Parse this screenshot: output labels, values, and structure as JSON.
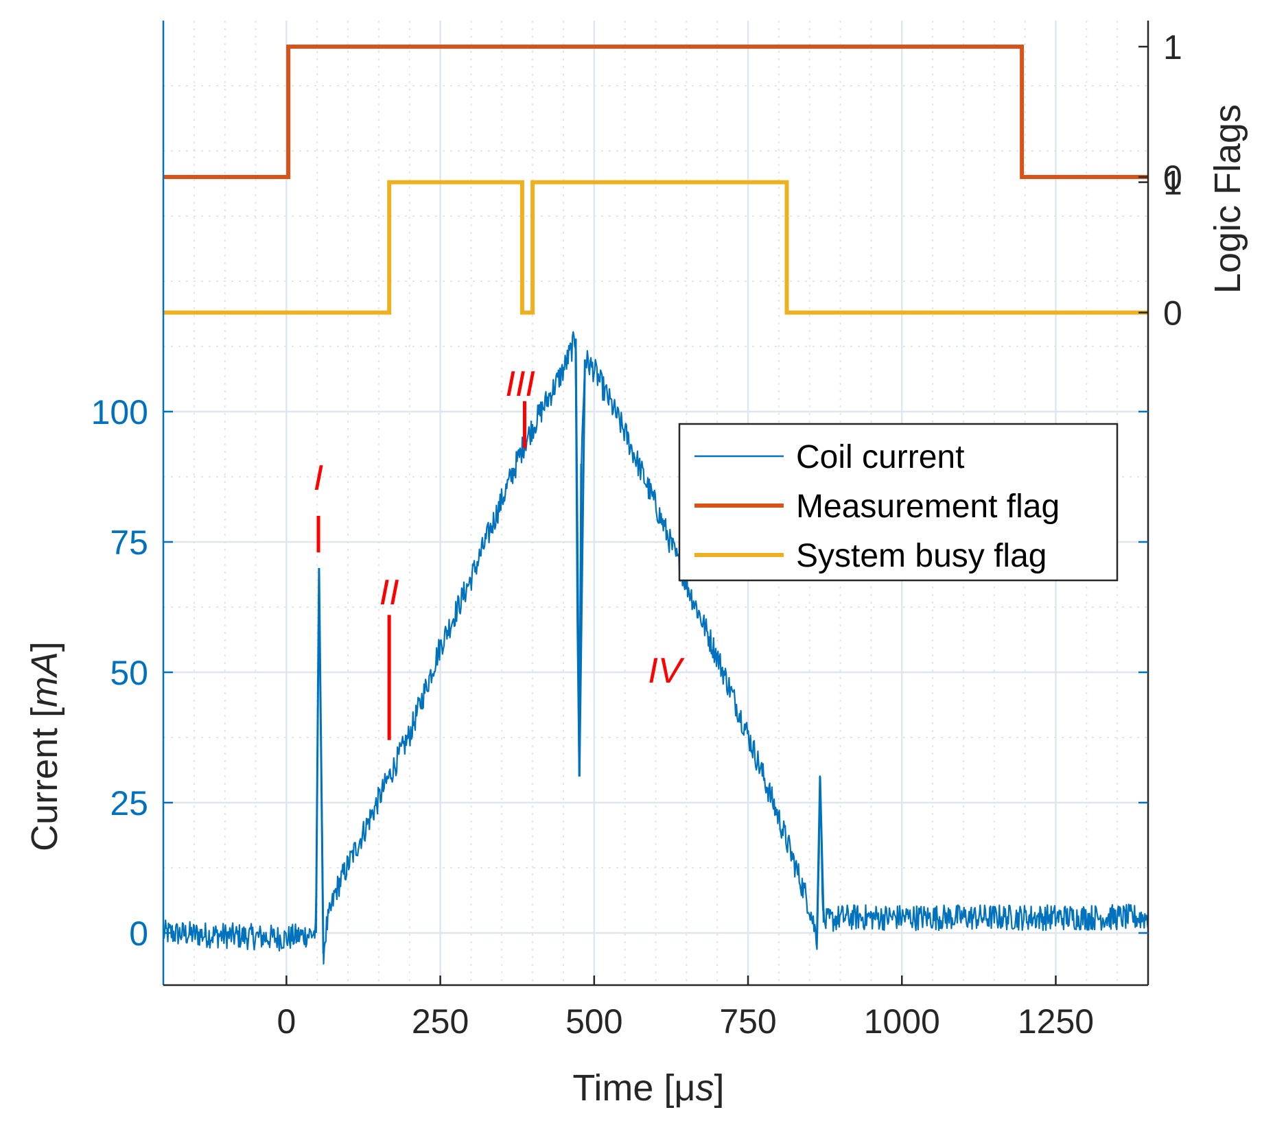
{
  "colors": {
    "coil": "#0072BD",
    "measurement": "#D95319",
    "busy": "#EDB120",
    "annotation": "#FF0000",
    "grid": "#DFE6EE",
    "axis": "#262626"
  },
  "chart_data": {
    "type": "line",
    "xlabel_prefix": "Time [",
    "xlabel_unit_mu": "μ",
    "xlabel_unit_s": "s",
    "xlabel_suffix": "]",
    "ylabel_left_prefix": "Current [",
    "ylabel_left_unit": "mA",
    "ylabel_left_suffix": "]",
    "ylabel_right": "Logic Flags",
    "xlim": [
      -200,
      1400
    ],
    "x_ticks": [
      0,
      250,
      500,
      750,
      1000,
      1250
    ],
    "x_tick_labels": [
      "0",
      "250",
      "500",
      "750",
      "1000",
      "1250"
    ],
    "ylim_left": [
      -10,
      175
    ],
    "y_ticks_left": [
      0,
      25,
      50,
      75,
      100
    ],
    "y_tick_labels_left": [
      "0",
      "25",
      "50",
      "75",
      "100"
    ],
    "right_axis_ticks": [
      {
        "flag": "System busy flag",
        "level": 0,
        "label": "0"
      },
      {
        "flag": "System busy flag",
        "level": 1,
        "label": "1"
      },
      {
        "flag": "Measurement flag",
        "level": 0,
        "label": "0"
      },
      {
        "flag": "Measurement flag",
        "level": 1,
        "label": "1"
      }
    ],
    "grid": true,
    "legend_position": "upper-right",
    "series": [
      {
        "name": "Coil current",
        "axis": "left",
        "noise_amplitude_mA": 2.5,
        "points": [
          [
            -200,
            0
          ],
          [
            -100,
            -0.5
          ],
          [
            0,
            -1
          ],
          [
            48,
            0
          ],
          [
            50,
            30
          ],
          [
            53,
            70
          ],
          [
            57,
            30
          ],
          [
            60,
            -4
          ],
          [
            65,
            1
          ],
          [
            80,
            8
          ],
          [
            120,
            18
          ],
          [
            167,
            30
          ],
          [
            200,
            38
          ],
          [
            250,
            55
          ],
          [
            300,
            68
          ],
          [
            350,
            83
          ],
          [
            387,
            94
          ],
          [
            400,
            97
          ],
          [
            450,
            108
          ],
          [
            470,
            114
          ],
          [
            473,
            60
          ],
          [
            476,
            30
          ],
          [
            479,
            90
          ],
          [
            485,
            110
          ],
          [
            500,
            108
          ],
          [
            550,
            96
          ],
          [
            600,
            82
          ],
          [
            650,
            67
          ],
          [
            700,
            53
          ],
          [
            750,
            38
          ],
          [
            800,
            22
          ],
          [
            850,
            5
          ],
          [
            862,
            -1
          ],
          [
            865,
            12
          ],
          [
            867,
            30
          ],
          [
            870,
            12
          ],
          [
            873,
            2
          ],
          [
            900,
            3
          ],
          [
            1000,
            3
          ],
          [
            1100,
            3
          ],
          [
            1200,
            3
          ],
          [
            1300,
            3
          ],
          [
            1400,
            3
          ]
        ]
      },
      {
        "name": "Measurement flag",
        "axis": "right",
        "low_mA": 145,
        "high_mA": 170,
        "points": [
          [
            -200,
            0
          ],
          [
            3,
            0
          ],
          [
            3,
            1
          ],
          [
            1195,
            1
          ],
          [
            1195,
            0
          ],
          [
            1400,
            0
          ]
        ]
      },
      {
        "name": "System busy flag",
        "axis": "right",
        "low_mA": 119,
        "high_mA": 144,
        "points": [
          [
            -200,
            0
          ],
          [
            167,
            0
          ],
          [
            167,
            1
          ],
          [
            383,
            1
          ],
          [
            383,
            0
          ],
          [
            400,
            0
          ],
          [
            400,
            1
          ],
          [
            813,
            1
          ],
          [
            813,
            0
          ],
          [
            1400,
            0
          ]
        ]
      }
    ],
    "legend": [
      "Coil current",
      "Measurement flag",
      "System busy flag"
    ],
    "annotations": [
      {
        "label": "I",
        "x": 52,
        "y_text": 85,
        "mark_x": 52,
        "mark_from": 73,
        "mark_to": 80
      },
      {
        "label": "II",
        "x": 167,
        "y_text": 63,
        "mark_x": 167,
        "mark_from": 37,
        "mark_to": 61
      },
      {
        "label": "III",
        "x": 380,
        "y_text": 103,
        "mark_x": 387,
        "mark_from": 93,
        "mark_to": 102
      },
      {
        "label": "IV",
        "x": 615,
        "y_text": 48
      }
    ]
  }
}
